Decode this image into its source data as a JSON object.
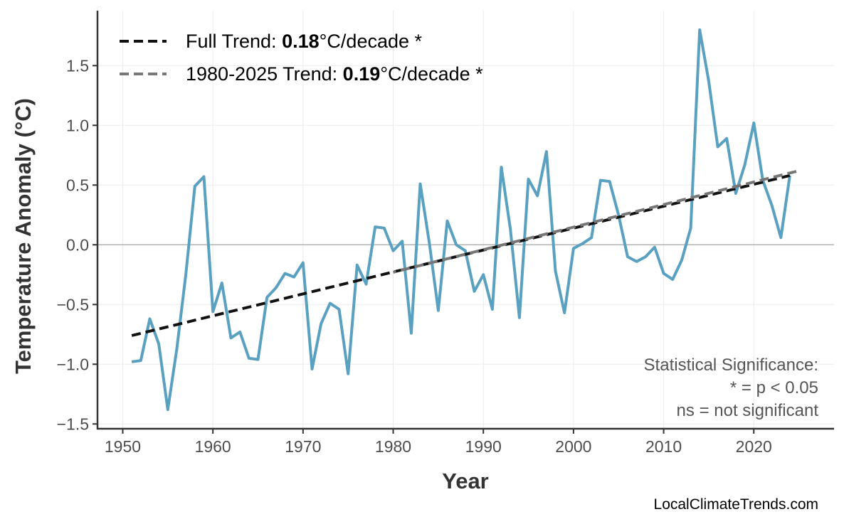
{
  "chart_data": {
    "type": "line",
    "title": "",
    "xlabel": "Year",
    "ylabel": "Temperature Anomaly (°C)",
    "xlim": [
      1947.2,
      2028.9
    ],
    "ylim": [
      -1.54,
      1.96
    ],
    "xticks": [
      1950,
      1960,
      1970,
      1980,
      1990,
      2000,
      2010,
      2020
    ],
    "yticks": [
      -1.5,
      -1.0,
      -0.5,
      0.0,
      0.5,
      1.0,
      1.5
    ],
    "ytick_labels": [
      "−1.5",
      "−1.0",
      "−0.5",
      "0.0",
      "0.5",
      "1.0",
      "1.5"
    ],
    "grid": true,
    "zero_line": true,
    "legend_position": "top-left",
    "x": [
      1951,
      1952,
      1953,
      1954,
      1955,
      1956,
      1957,
      1958,
      1959,
      1960,
      1961,
      1962,
      1963,
      1964,
      1965,
      1966,
      1967,
      1968,
      1969,
      1970,
      1971,
      1972,
      1973,
      1974,
      1975,
      1976,
      1977,
      1978,
      1979,
      1980,
      1981,
      1982,
      1983,
      1984,
      1985,
      1986,
      1987,
      1988,
      1989,
      1990,
      1991,
      1992,
      1993,
      1994,
      1995,
      1996,
      1997,
      1998,
      1999,
      2000,
      2001,
      2002,
      2003,
      2004,
      2005,
      2006,
      2007,
      2008,
      2009,
      2010,
      2011,
      2012,
      2013,
      2014,
      2015,
      2016,
      2017,
      2018,
      2019,
      2020,
      2021,
      2022,
      2023,
      2024
    ],
    "series": [
      {
        "values": [
          -0.98,
          -0.97,
          -0.62,
          -0.83,
          -1.38,
          -0.87,
          -0.25,
          0.49,
          0.57,
          -0.56,
          -0.32,
          -0.78,
          -0.73,
          -0.95,
          -0.96,
          -0.44,
          -0.36,
          -0.24,
          -0.27,
          -0.15,
          -1.04,
          -0.66,
          -0.49,
          -0.54,
          -1.08,
          -0.17,
          -0.33,
          0.15,
          0.14,
          -0.05,
          0.03,
          -0.74,
          0.51,
          0.02,
          -0.55,
          0.2,
          0.0,
          -0.05,
          -0.39,
          -0.25,
          -0.54,
          0.65,
          0.13,
          -0.61,
          0.55,
          0.41,
          0.78,
          -0.22,
          -0.57,
          -0.03,
          0.01,
          0.06,
          0.54,
          0.53,
          0.25,
          -0.1,
          -0.14,
          -0.1,
          -0.02,
          -0.24,
          -0.29,
          -0.13,
          0.14,
          1.8,
          1.37,
          0.82,
          0.89,
          0.43,
          0.67,
          1.02,
          0.54,
          0.33,
          0.06,
          0.58
        ],
        "color": "#5aa0c0"
      }
    ],
    "trends": [
      {
        "name_prefix": "Full Trend: ",
        "slope": "0.18",
        "suffix": "°C/decade *",
        "x": [
          1951,
          2024
        ],
        "y": [
          -0.76,
          0.58
        ],
        "color": "#111111"
      },
      {
        "name_prefix": "1980-2025 Trend: ",
        "slope": "0.19",
        "suffix": "°C/decade *",
        "x": [
          1980,
          2025
        ],
        "y": [
          -0.23,
          0.62
        ],
        "color": "#777777"
      }
    ],
    "annotation": [
      "Statistical Significance:",
      "* = p < 0.05",
      "ns = not significant"
    ],
    "watermark": "LocalClimateTrends.com"
  }
}
